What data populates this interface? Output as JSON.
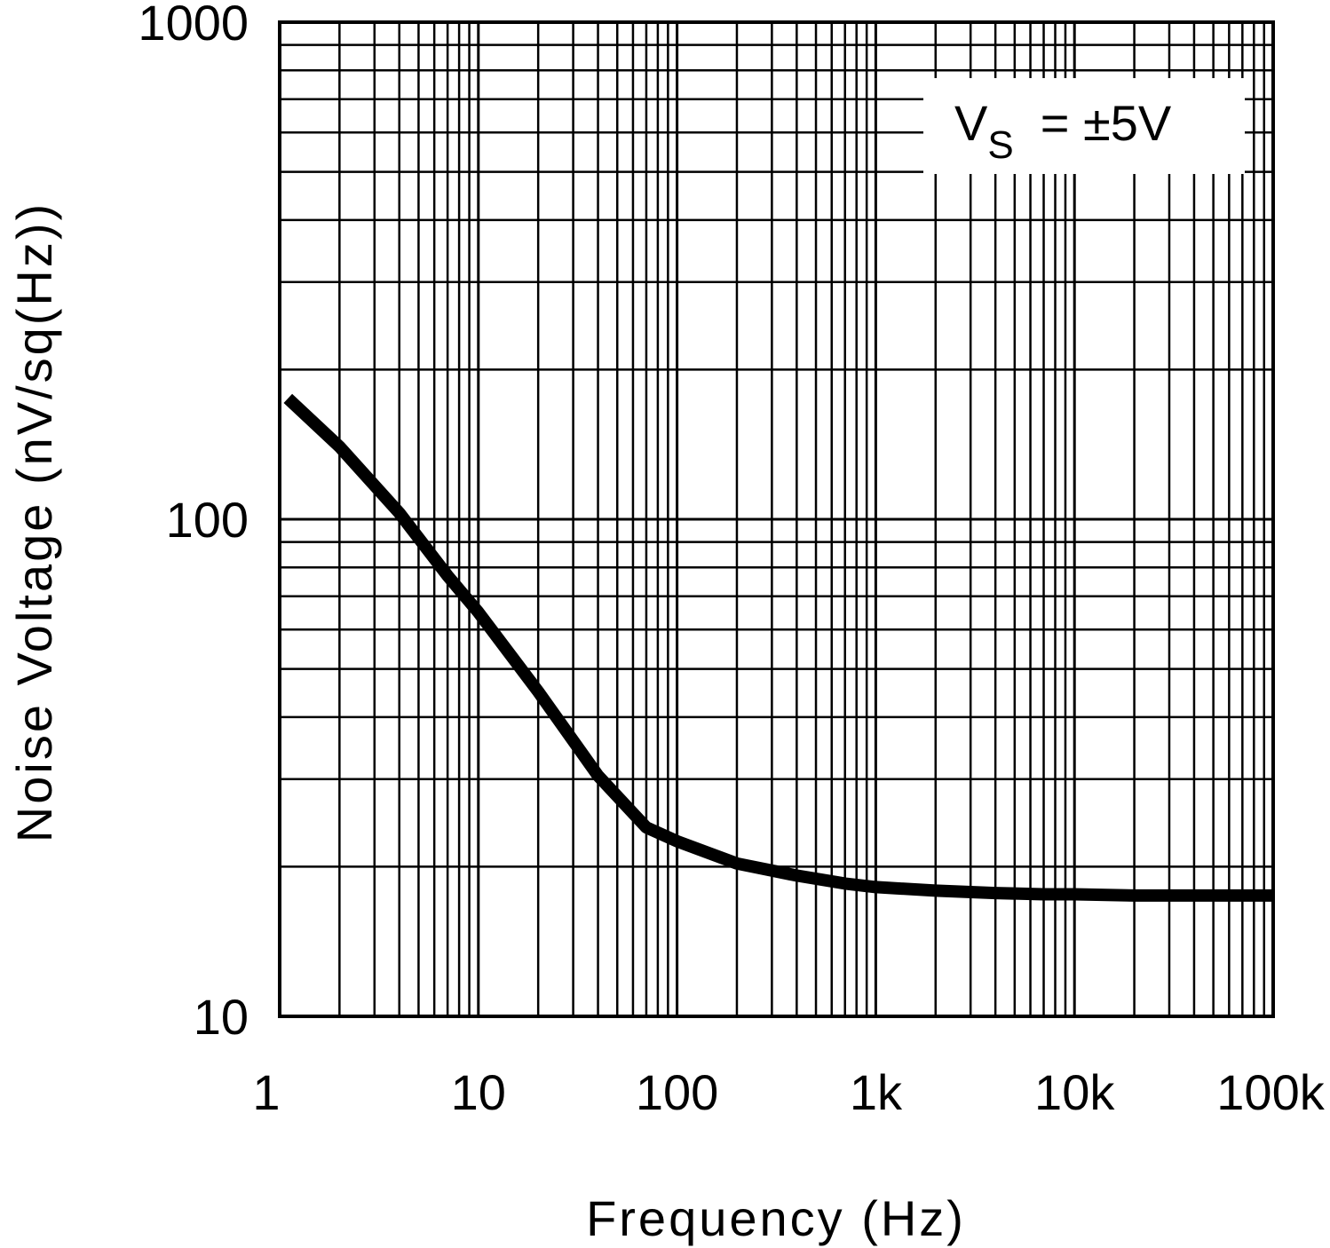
{
  "chart_data": {
    "type": "line",
    "title": "",
    "xlabel": "Frequency (Hz)",
    "ylabel": "Noise Voltage (nV/sq(Hz))",
    "x_scale": "log",
    "y_scale": "log",
    "xlim": [
      1,
      100000
    ],
    "ylim": [
      10,
      1000
    ],
    "grid": true,
    "x_ticks": [
      {
        "value": 1,
        "label": "1"
      },
      {
        "value": 10,
        "label": "10"
      },
      {
        "value": 100,
        "label": "100"
      },
      {
        "value": 1000,
        "label": "1k"
      },
      {
        "value": 10000,
        "label": "10k"
      },
      {
        "value": 100000,
        "label": "100k"
      }
    ],
    "y_ticks": [
      {
        "value": 10,
        "label": "10"
      },
      {
        "value": 100,
        "label": "100"
      },
      {
        "value": 1000,
        "label": "1000"
      }
    ],
    "annotation": {
      "main": "V",
      "subscript": "S",
      "rest": "= ±5V"
    },
    "series": [
      {
        "name": "Noise Voltage",
        "color": "#000000",
        "x": [
          1.1,
          2,
          4,
          7,
          10,
          20,
          40,
          70,
          100,
          200,
          400,
          700,
          1000,
          2000,
          4000,
          7000,
          10000,
          20000,
          50000,
          100000
        ],
        "y": [
          175,
          140,
          103,
          77,
          65,
          45,
          30.5,
          24,
          22.5,
          20.3,
          19.2,
          18.5,
          18.2,
          17.9,
          17.7,
          17.6,
          17.6,
          17.5,
          17.5,
          17.5
        ]
      }
    ]
  }
}
